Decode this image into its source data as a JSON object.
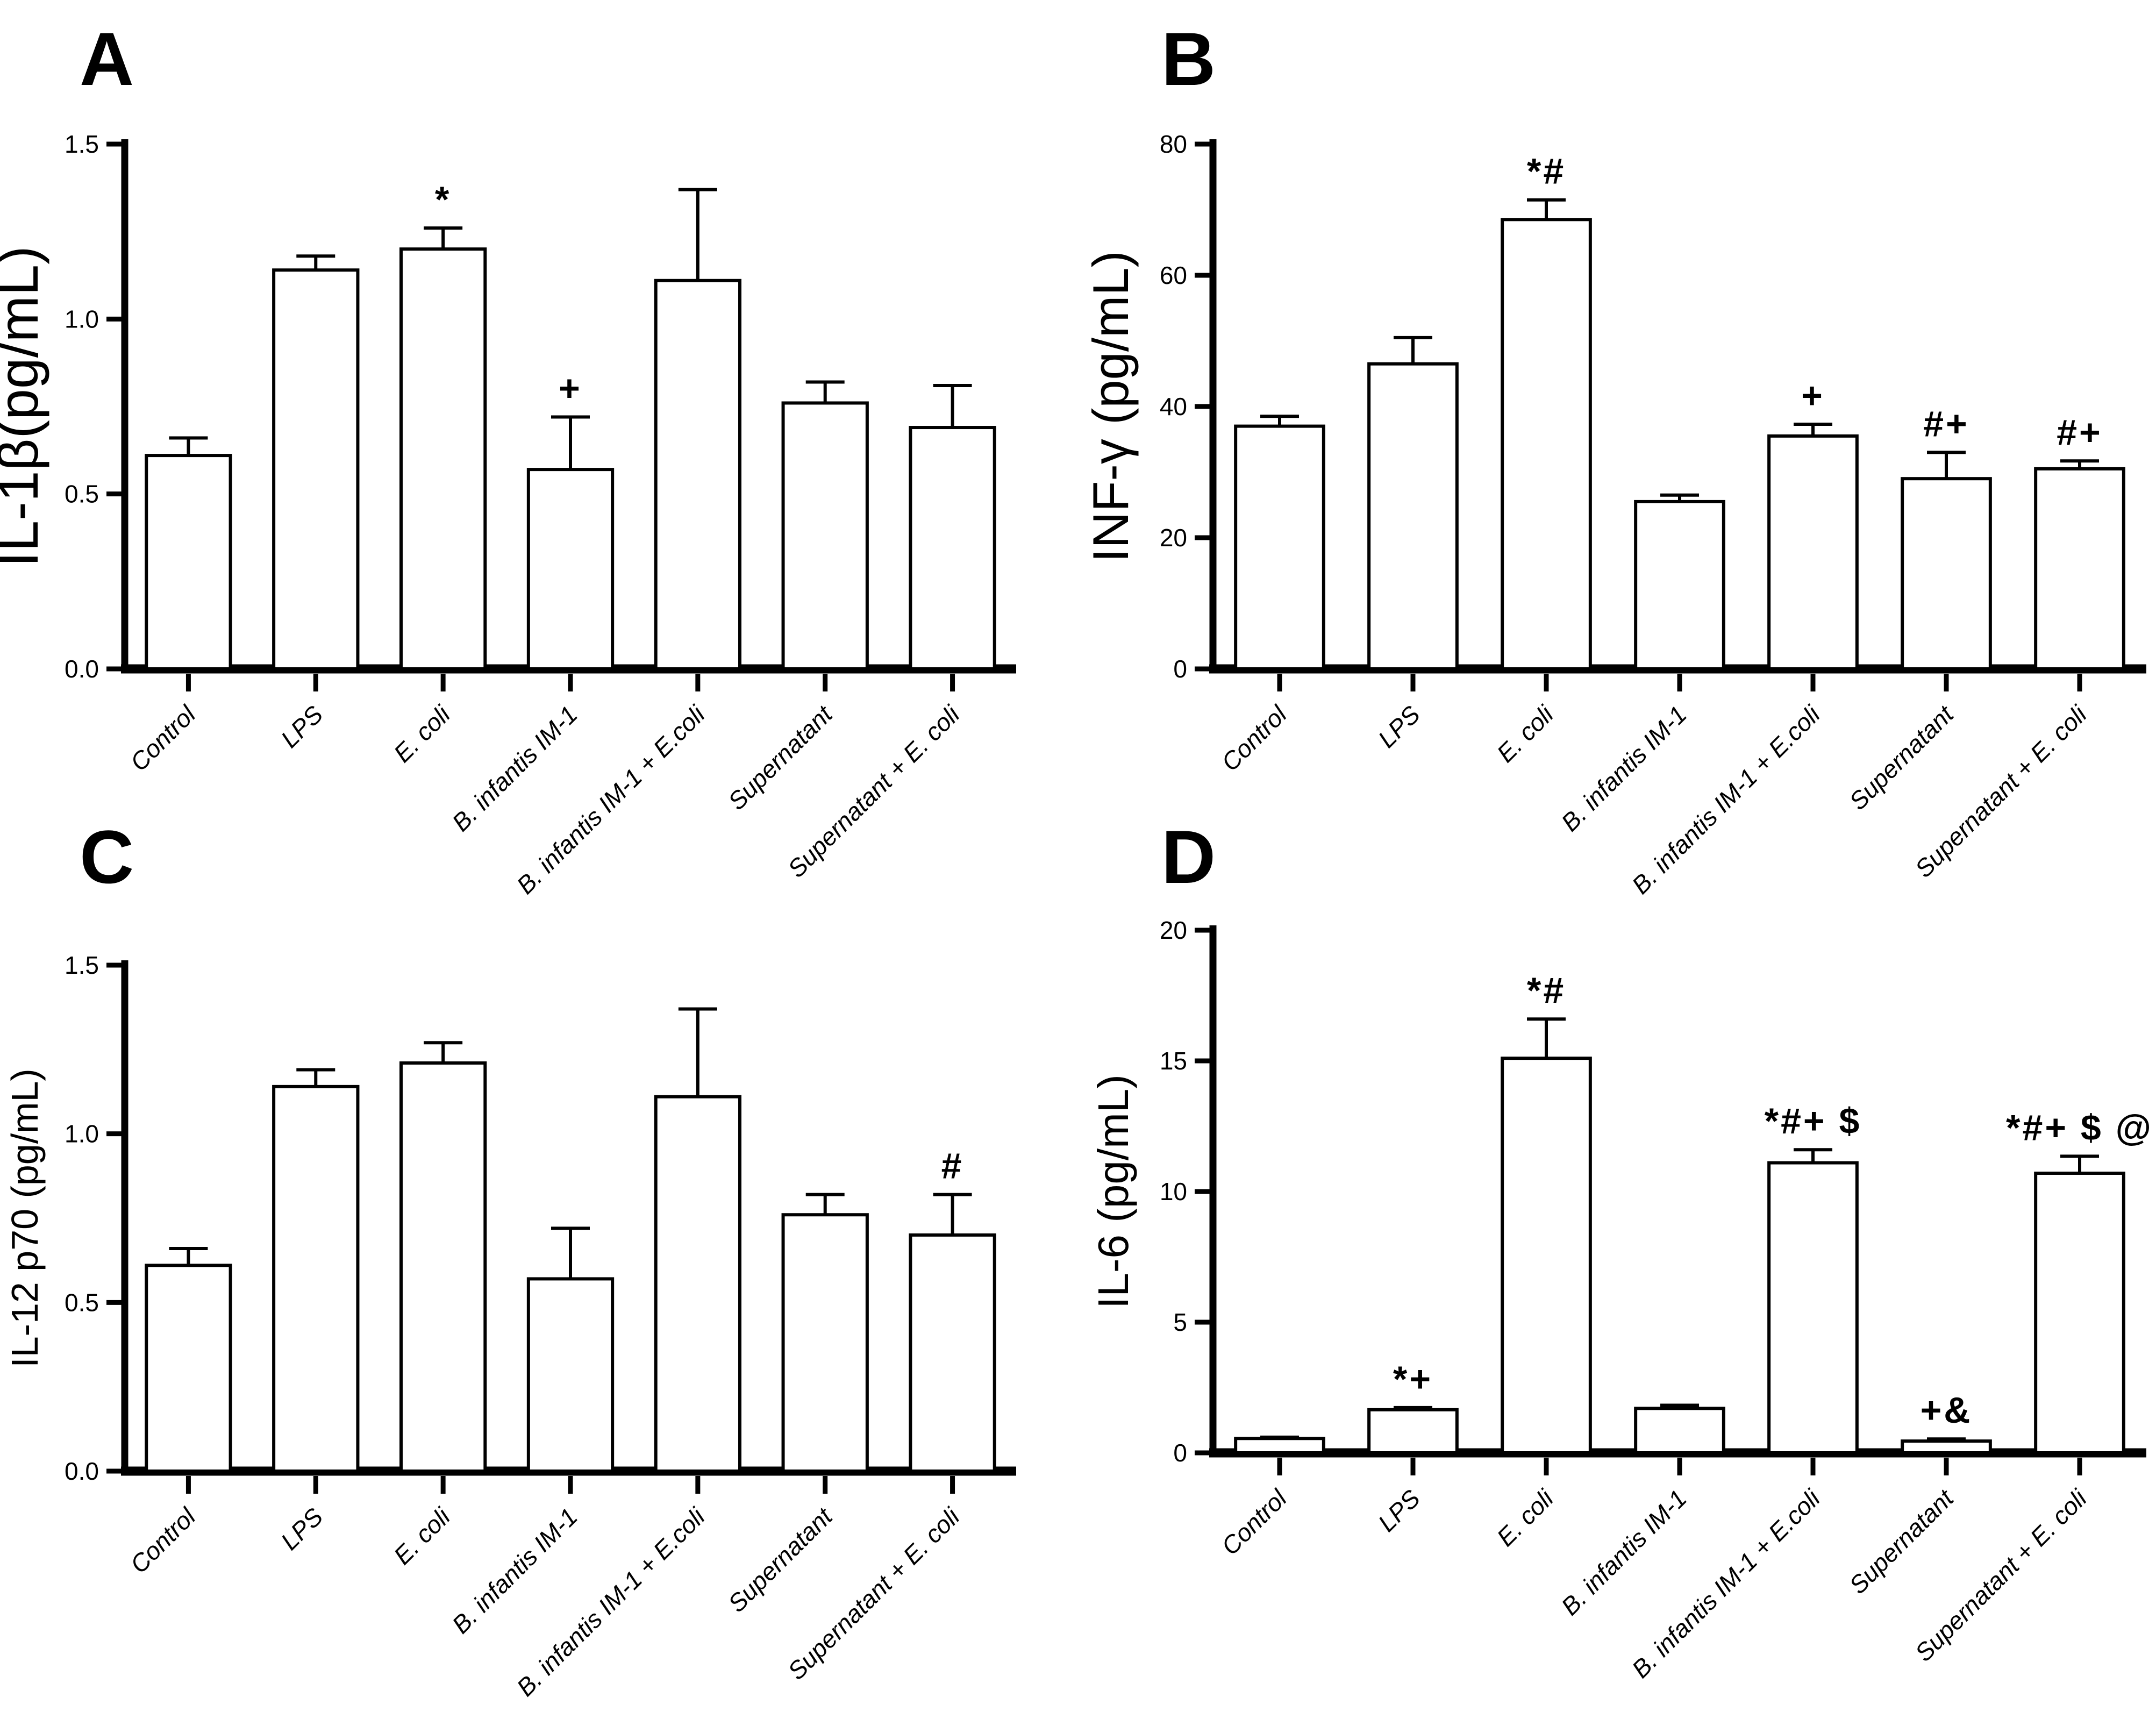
{
  "figure": {
    "background": "#ffffff",
    "ink_color": "#000000",
    "panel_letters": [
      "A",
      "B",
      "C",
      "D"
    ]
  },
  "chart_data": [
    {
      "panel": "A",
      "type": "bar",
      "title": "",
      "xlabel": "",
      "ylabel": "IL-1β(pg/mL)",
      "ylim": [
        0,
        1.5
      ],
      "yticks": [
        "0.0",
        "0.5",
        "1.0",
        "1.5"
      ],
      "grid": false,
      "legend": "none",
      "bar_fill": "#ffffff",
      "bar_edge": "#000000",
      "categories": [
        "Control",
        "LPS",
        "E. coli",
        "B. infantis IM-1",
        "B. infantis IM-1 + E.coli",
        "Supernatant",
        "Supernatant + E. coli"
      ],
      "values": [
        0.61,
        1.14,
        1.2,
        0.57,
        1.11,
        0.76,
        0.69
      ],
      "errors": [
        0.05,
        0.04,
        0.06,
        0.15,
        0.26,
        0.06,
        0.12
      ],
      "annotations": [
        "",
        "",
        "*",
        "+",
        "",
        "",
        ""
      ]
    },
    {
      "panel": "B",
      "type": "bar",
      "title": "",
      "xlabel": "",
      "ylabel": "INF-γ (pg/mL)",
      "ylim": [
        0,
        80
      ],
      "yticks": [
        "0",
        "20",
        "40",
        "60",
        "80"
      ],
      "grid": false,
      "legend": "none",
      "bar_fill": "#ffffff",
      "bar_edge": "#000000",
      "categories": [
        "Control",
        "LPS",
        "E. coli",
        "B. infantis IM-1",
        "B. infantis IM-1 + E.coli",
        "Supernatant",
        "Supernatant + E. coli"
      ],
      "values": [
        37,
        46.5,
        68.5,
        25.5,
        35.5,
        29,
        30.5
      ],
      "errors": [
        1.5,
        4,
        3,
        1,
        1.8,
        4,
        1.2
      ],
      "annotations": [
        "",
        "",
        "*#",
        "",
        "+",
        "#+",
        "#+"
      ]
    },
    {
      "panel": "C",
      "type": "bar",
      "title": "",
      "xlabel": "",
      "ylabel": "IL-12 p70 (pg/mL)",
      "ylim": [
        0,
        1.5
      ],
      "yticks": [
        "0.0",
        "0.5",
        "1.0",
        "1.5"
      ],
      "grid": false,
      "legend": "none",
      "bar_fill": "#ffffff",
      "bar_edge": "#000000",
      "categories": [
        "Control",
        "LPS",
        "E. coli",
        "B. infantis IM-1",
        "B. infantis IM-1 + E.coli",
        "Supernatant",
        "Supernatant + E. coli"
      ],
      "values": [
        0.61,
        1.14,
        1.21,
        0.57,
        1.11,
        0.76,
        0.7
      ],
      "errors": [
        0.05,
        0.05,
        0.06,
        0.15,
        0.26,
        0.06,
        0.12
      ],
      "annotations": [
        "",
        "",
        "",
        "",
        "",
        "",
        "#"
      ]
    },
    {
      "panel": "D",
      "type": "bar",
      "title": "",
      "xlabel": "",
      "ylabel": "IL-6 (pg/mL)",
      "ylim": [
        0,
        20
      ],
      "yticks": [
        "0",
        "5",
        "10",
        "15",
        "20"
      ],
      "grid": false,
      "legend": "none",
      "bar_fill": "#ffffff",
      "bar_edge": "#000000",
      "categories": [
        "Control",
        "LPS",
        "E. coli",
        "B. infantis IM-1",
        "B. infantis IM-1 + E.coli",
        "Supernatant",
        "Supernatant + E. coli"
      ],
      "values": [
        0.55,
        1.65,
        15.1,
        1.7,
        11.1,
        0.45,
        10.7
      ],
      "errors": [
        0.05,
        0.08,
        1.5,
        0.12,
        0.5,
        0.08,
        0.65
      ],
      "annotations": [
        "",
        "*+",
        "*#",
        "",
        "*#+ $",
        "+&",
        "*#+ $ @"
      ]
    }
  ]
}
